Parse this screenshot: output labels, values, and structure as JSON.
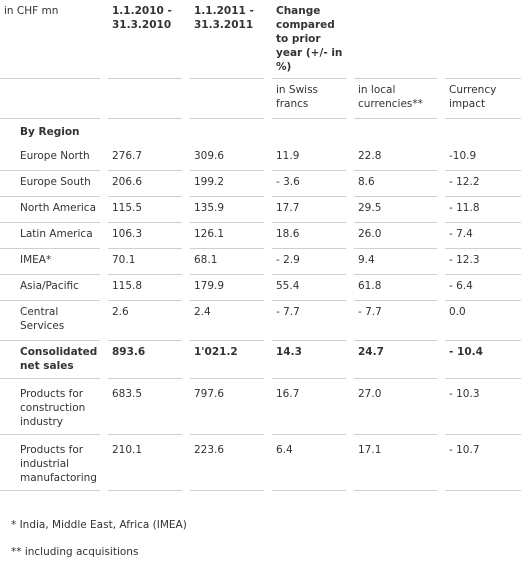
{
  "header": {
    "unit": "in CHF mn",
    "col1": "1.1.2010 - 31.3.2010",
    "col2": "1.1.2011 - 31.3.2011",
    "change": "Change compared to prior year (+/- in %)"
  },
  "subheader": {
    "swiss": "in Swiss francs",
    "local": "in local currencies**",
    "currency": "Currency impact"
  },
  "section_label": "By Region",
  "rows": [
    {
      "label": "Europe North",
      "v1": "276.7",
      "v2": "309.6",
      "chf": "11.9",
      "local": "22.8",
      "fx": "-10.9"
    },
    {
      "label": "Europe South",
      "v1": "206.6",
      "v2": "199.2",
      "chf": "- 3.6",
      "local": "8.6",
      "fx": "- 12.2"
    },
    {
      "label": "North America",
      "v1": "115.5",
      "v2": "135.9",
      "chf": "17.7",
      "local": "29.5",
      "fx": "- 11.8"
    },
    {
      "label": "Latin America",
      "v1": "106.3",
      "v2": "126.1",
      "chf": "18.6",
      "local": "26.0",
      "fx": "- 7.4"
    },
    {
      "label": "IMEA*",
      "v1": "70.1",
      "v2": "68.1",
      "chf": "- 2.9",
      "local": "9.4",
      "fx": "- 12.3"
    },
    {
      "label": "Asia/Pacific",
      "v1": "115.8",
      "v2": "179.9",
      "chf": "55.4",
      "local": "61.8",
      "fx": "- 6.4"
    },
    {
      "label": "Central Services",
      "v1": "2.6",
      "v2": "2.4",
      "chf": "- 7.7",
      "local": "- 7.7",
      "fx": "0.0"
    }
  ],
  "total": {
    "label": "Consolidated net sales",
    "v1": "893.6",
    "v2": "1'021.2",
    "chf": "14.3",
    "local": "24.7",
    "fx": "- 10.4"
  },
  "products": [
    {
      "label": "Products for construction industry",
      "v1": "683.5",
      "v2": "797.6",
      "chf": "16.7",
      "local": "27.0",
      "fx": "- 10.3"
    },
    {
      "label": "Products for industrial manufactoring",
      "v1": "210.1",
      "v2": "223.6",
      "chf": "6.4",
      "local": "17.1",
      "fx": "- 10.7"
    }
  ],
  "footnotes": {
    "imea": "* India, Middle East, Africa (IMEA)",
    "acq": "** including acquisitions"
  }
}
